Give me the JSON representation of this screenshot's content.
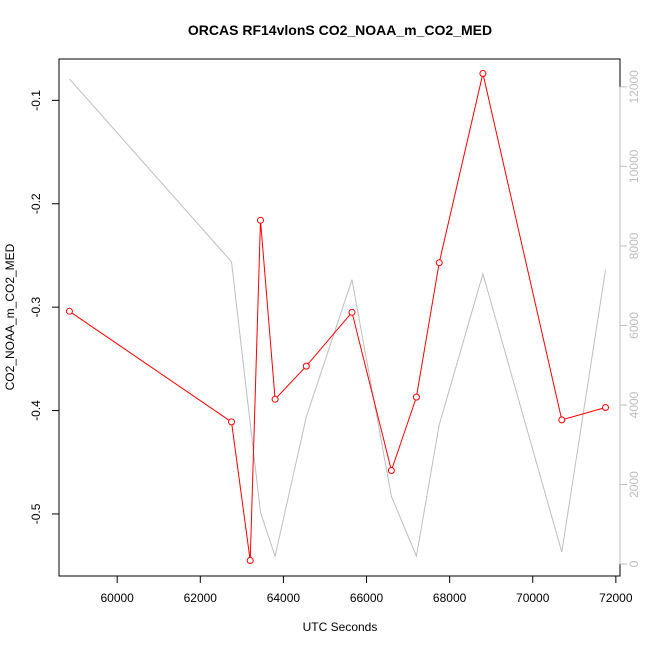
{
  "chart_data": {
    "type": "line",
    "title": "ORCAS RF14vlonS CO2_NOAA_m_CO2_MED",
    "xlabel": "UTC Seconds",
    "ylabel": "CO2_NOAA_m_CO2_MED",
    "xlim": [
      58600,
      72100
    ],
    "ylim": [
      -0.56,
      -0.06
    ],
    "y2lim": [
      -300,
      12700
    ],
    "x_ticks": [
      "60000",
      "62000",
      "64000",
      "66000",
      "68000",
      "70000",
      "72000"
    ],
    "y_ticks": [
      "-0.5",
      "-0.4",
      "-0.3",
      "-0.2",
      "-0.1"
    ],
    "y2_ticks": [
      "0",
      "2000",
      "4000",
      "6000",
      "8000",
      "10000",
      "12000"
    ],
    "colors": {
      "primary": "#ff0000",
      "secondary": "#bebebe",
      "axis": "#000000"
    },
    "series": [
      {
        "axis": "left",
        "style": "line+circle-markers",
        "color": "#ff0000",
        "points": [
          [
            58850,
            -0.304
          ],
          [
            62750,
            -0.411
          ],
          [
            63200,
            -0.545
          ],
          [
            63450,
            -0.216
          ],
          [
            63800,
            -0.389
          ],
          [
            64550,
            -0.357
          ],
          [
            65650,
            -0.305
          ],
          [
            66600,
            -0.458
          ],
          [
            67200,
            -0.387
          ],
          [
            67750,
            -0.257
          ],
          [
            68800,
            -0.074
          ],
          [
            70700,
            -0.409
          ],
          [
            71750,
            -0.397
          ]
        ]
      },
      {
        "axis": "right",
        "style": "line",
        "color": "#bebebe",
        "points": [
          [
            58850,
            12200
          ],
          [
            62750,
            7600
          ],
          [
            63450,
            1300
          ],
          [
            63800,
            200
          ],
          [
            64550,
            3700
          ],
          [
            65650,
            7150
          ],
          [
            66600,
            1700
          ],
          [
            67200,
            200
          ],
          [
            67750,
            3500
          ],
          [
            68800,
            7300
          ],
          [
            70700,
            300
          ],
          [
            71750,
            7400
          ]
        ]
      }
    ]
  }
}
